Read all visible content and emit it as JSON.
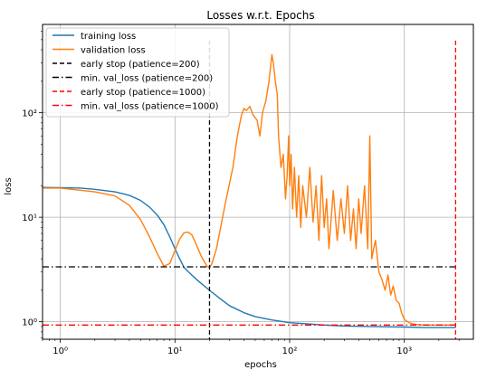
{
  "chart_data": {
    "type": "line",
    "title": "Losses w.r.t. Epochs",
    "xlabel": "epochs",
    "ylabel": "loss",
    "xscale": "log",
    "yscale": "log",
    "xlim": [
      0.7,
      4000
    ],
    "ylim": [
      0.68,
      700
    ],
    "grid": true,
    "legend_position": "top-left",
    "x_ticks": [
      {
        "value": 1,
        "label": "10⁰"
      },
      {
        "value": 10,
        "label": "10¹"
      },
      {
        "value": 100,
        "label": "10²"
      },
      {
        "value": 1000,
        "label": "10³"
      }
    ],
    "y_ticks": [
      {
        "value": 1,
        "label": "10⁰"
      },
      {
        "value": 10,
        "label": "10¹"
      },
      {
        "value": 100,
        "label": "10²"
      }
    ],
    "series": [
      {
        "name": "training loss",
        "color": "#1f77b4",
        "points": [
          [
            0.7,
            19.3
          ],
          [
            1,
            19.2
          ],
          [
            1.5,
            19
          ],
          [
            2,
            18.5
          ],
          [
            3,
            17.5
          ],
          [
            4,
            16.2
          ],
          [
            5,
            14.5
          ],
          [
            6,
            12.5
          ],
          [
            7,
            10.5
          ],
          [
            8,
            8.5
          ],
          [
            9,
            6.5
          ],
          [
            10,
            5
          ],
          [
            11,
            4
          ],
          [
            12,
            3.3
          ],
          [
            14,
            2.8
          ],
          [
            16,
            2.45
          ],
          [
            20,
            2.0
          ],
          [
            25,
            1.65
          ],
          [
            30,
            1.42
          ],
          [
            40,
            1.22
          ],
          [
            50,
            1.12
          ],
          [
            70,
            1.04
          ],
          [
            100,
            0.98
          ],
          [
            150,
            0.95
          ],
          [
            200,
            0.93
          ],
          [
            300,
            0.91
          ],
          [
            500,
            0.9
          ],
          [
            1000,
            0.89
          ],
          [
            1500,
            0.88
          ],
          [
            2000,
            0.88
          ],
          [
            2800,
            0.88
          ]
        ]
      },
      {
        "name": "validation loss",
        "color": "#ff7f0e",
        "points": [
          [
            0.7,
            19
          ],
          [
            1,
            19
          ],
          [
            2,
            17.5
          ],
          [
            3,
            16
          ],
          [
            4,
            13
          ],
          [
            5,
            9.5
          ],
          [
            6,
            6.5
          ],
          [
            7,
            4.5
          ],
          [
            8,
            3.4
          ],
          [
            9,
            3.6
          ],
          [
            10,
            4.8
          ],
          [
            11,
            6.2
          ],
          [
            12,
            7.1
          ],
          [
            13,
            7.2
          ],
          [
            14,
            6.8
          ],
          [
            15,
            5.8
          ],
          [
            17,
            4.2
          ],
          [
            19,
            3.4
          ],
          [
            20,
            3.3
          ],
          [
            21,
            3.6
          ],
          [
            23,
            5
          ],
          [
            25,
            8
          ],
          [
            28,
            15
          ],
          [
            32,
            30
          ],
          [
            35,
            60
          ],
          [
            38,
            95
          ],
          [
            40,
            110
          ],
          [
            42,
            105
          ],
          [
            45,
            115
          ],
          [
            48,
            95
          ],
          [
            52,
            85
          ],
          [
            55,
            60
          ],
          [
            58,
            100
          ],
          [
            62,
            130
          ],
          [
            66,
            200
          ],
          [
            70,
            360
          ],
          [
            72,
            300
          ],
          [
            75,
            200
          ],
          [
            78,
            150
          ],
          [
            80,
            60
          ],
          [
            84,
            30
          ],
          [
            88,
            40
          ],
          [
            92,
            15
          ],
          [
            95,
            25
          ],
          [
            98,
            60
          ],
          [
            100,
            20
          ],
          [
            103,
            40
          ],
          [
            106,
            12
          ],
          [
            110,
            30
          ],
          [
            115,
            10
          ],
          [
            120,
            25
          ],
          [
            125,
            8
          ],
          [
            130,
            20
          ],
          [
            140,
            10
          ],
          [
            150,
            30
          ],
          [
            160,
            9
          ],
          [
            170,
            20
          ],
          [
            180,
            6
          ],
          [
            190,
            25
          ],
          [
            200,
            8
          ],
          [
            210,
            15
          ],
          [
            220,
            5
          ],
          [
            240,
            18
          ],
          [
            260,
            6
          ],
          [
            280,
            15
          ],
          [
            300,
            7
          ],
          [
            320,
            20
          ],
          [
            340,
            6
          ],
          [
            360,
            12
          ],
          [
            380,
            5
          ],
          [
            400,
            15
          ],
          [
            420,
            7
          ],
          [
            450,
            20
          ],
          [
            480,
            5
          ],
          [
            500,
            60
          ],
          [
            520,
            4
          ],
          [
            540,
            5
          ],
          [
            560,
            6
          ],
          [
            600,
            3
          ],
          [
            640,
            2.5
          ],
          [
            680,
            2
          ],
          [
            720,
            2.8
          ],
          [
            760,
            1.8
          ],
          [
            800,
            2.2
          ],
          [
            850,
            1.6
          ],
          [
            900,
            1.5
          ],
          [
            950,
            1.2
          ],
          [
            1000,
            1.05
          ],
          [
            1100,
            0.98
          ],
          [
            1200,
            0.95
          ],
          [
            1300,
            0.94
          ],
          [
            1500,
            0.93
          ],
          [
            2000,
            0.93
          ],
          [
            2800,
            0.93
          ]
        ]
      },
      {
        "name": "early stop (patience=200)",
        "color": "#000000",
        "style": "dashed",
        "orientation": "vertical",
        "x": 20
      },
      {
        "name": "min. val_loss (patience=200)",
        "color": "#000000",
        "style": "dashdot",
        "orientation": "horizontal",
        "y": 3.35
      },
      {
        "name": "early stop (patience=1000)",
        "color": "#ff0000",
        "style": "dashed",
        "orientation": "vertical",
        "x": 2800
      },
      {
        "name": "min. val_loss (patience=1000)",
        "color": "#ff0000",
        "style": "dashdot",
        "orientation": "horizontal",
        "y": 0.93
      }
    ]
  }
}
